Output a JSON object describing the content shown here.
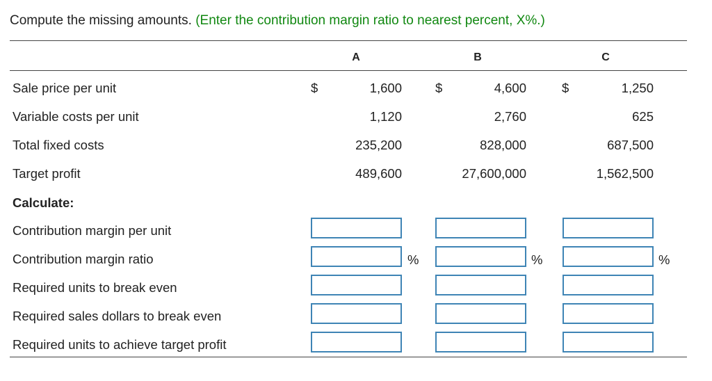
{
  "instruction": {
    "text": "Compute the missing amounts.",
    "hint": "(Enter the contribution margin ratio to nearest percent, X%.)"
  },
  "columns": [
    "A",
    "B",
    "C"
  ],
  "currency_symbol": "$",
  "percent_symbol": "%",
  "given_rows": [
    {
      "label": "Sale price per unit",
      "values": [
        "1,600",
        "4,600",
        "1,250"
      ],
      "show_currency": true
    },
    {
      "label": "Variable costs per unit",
      "values": [
        "1,120",
        "2,760",
        "625"
      ],
      "show_currency": false
    },
    {
      "label": "Total fixed costs",
      "values": [
        "235,200",
        "828,000",
        "687,500"
      ],
      "show_currency": false
    },
    {
      "label": "Target profit",
      "values": [
        "489,600",
        "27,600,000",
        "1,562,500"
      ],
      "show_currency": false
    }
  ],
  "calculate_heading": "Calculate:",
  "calc_rows": [
    {
      "label": "Contribution margin per unit",
      "inputs": [
        "",
        "",
        ""
      ],
      "show_percent": false
    },
    {
      "label": "Contribution margin ratio",
      "inputs": [
        "",
        "",
        ""
      ],
      "show_percent": true
    },
    {
      "label": "Required units to break even",
      "inputs": [
        "",
        "",
        ""
      ],
      "show_percent": false
    },
    {
      "label": "Required sales dollars to break even",
      "inputs": [
        "",
        "",
        ""
      ],
      "show_percent": false
    },
    {
      "label": "Required units to achieve target profit",
      "inputs": [
        "",
        "",
        ""
      ],
      "show_percent": false
    }
  ],
  "colors": {
    "hint": "#118811",
    "input_border": "#3e84b5",
    "rule": "#444444"
  }
}
